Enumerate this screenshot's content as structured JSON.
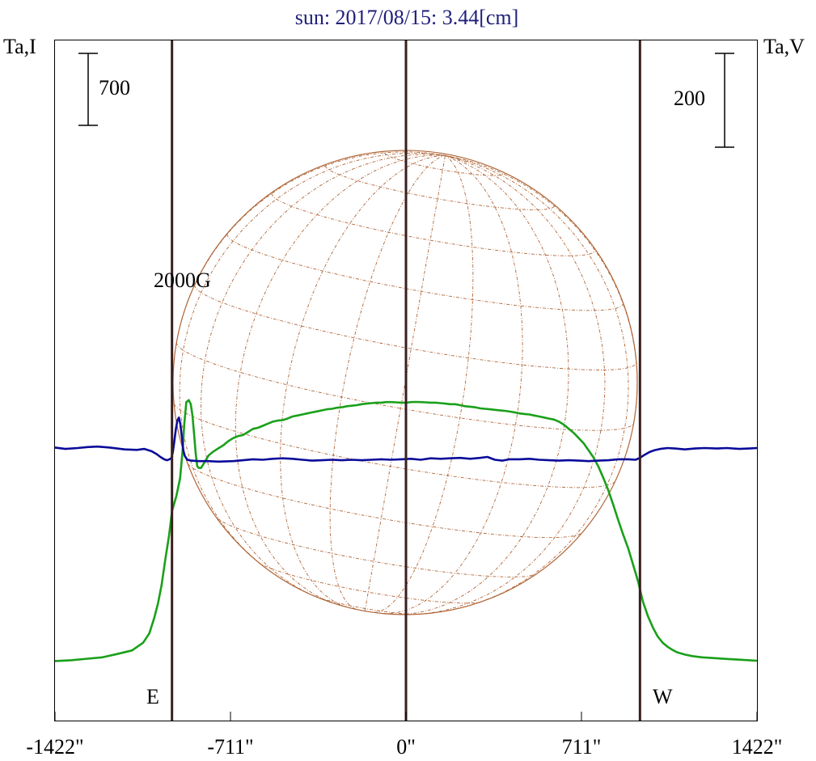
{
  "chart_data": {
    "type": "line",
    "title": "sun: 2017/08/15: 3.44[cm]",
    "ylabel_left": "Ta,I",
    "ylabel_right": "Ta,V",
    "xlim": [
      -1422,
      1422
    ],
    "x_ticks": [
      -1422,
      -711,
      0,
      711,
      1422
    ],
    "x_tick_labels": [
      "-1422\"",
      "-711\"",
      "0\"",
      "711\"",
      "1422\""
    ],
    "limb_lines": [
      -948,
      0,
      948
    ],
    "limb_labels": [
      "E",
      "W"
    ],
    "scale_bar_left": {
      "label": "700",
      "value": 700
    },
    "scale_bar_right": {
      "label": "200",
      "value": 200
    },
    "annotation": "2000G",
    "grid": false,
    "colors": {
      "intensity": "#1aa01a",
      "polarization": "#0a0a9a",
      "disk": "#b0673a",
      "limb_line": "#3a1f1f",
      "title": "#1f1f7a"
    },
    "series": [
      {
        "key": "intensity",
        "points": [
          [
            -1422,
            -58
          ],
          [
            -1357,
            -50
          ],
          [
            -1290,
            -35
          ],
          [
            -1230,
            -22
          ],
          [
            -1170,
            10
          ],
          [
            -1110,
            45
          ],
          [
            -1065,
            120
          ],
          [
            -1040,
            210
          ],
          [
            -1020,
            360
          ],
          [
            -1005,
            500
          ],
          [
            -990,
            680
          ],
          [
            -975,
            930
          ],
          [
            -960,
            1160
          ],
          [
            -948,
            1400
          ],
          [
            -930,
            1550
          ],
          [
            -915,
            1720
          ],
          [
            -905,
            1990
          ],
          [
            -898,
            2250
          ],
          [
            -890,
            2460
          ],
          [
            -880,
            2480
          ],
          [
            -872,
            2440
          ],
          [
            -865,
            2330
          ],
          [
            -858,
            2140
          ],
          [
            -852,
            1960
          ],
          [
            -846,
            1840
          ],
          [
            -840,
            1820
          ],
          [
            -830,
            1820
          ],
          [
            -815,
            1880
          ],
          [
            -800,
            1940
          ],
          [
            -780,
            1980
          ],
          [
            -760,
            2010
          ],
          [
            -740,
            2040
          ],
          [
            -720,
            2080
          ],
          [
            -700,
            2110
          ],
          [
            -680,
            2130
          ],
          [
            -660,
            2140
          ],
          [
            -640,
            2170
          ],
          [
            -620,
            2200
          ],
          [
            -600,
            2210
          ],
          [
            -580,
            2230
          ],
          [
            -560,
            2250
          ],
          [
            -540,
            2270
          ],
          [
            -520,
            2280
          ],
          [
            -500,
            2285
          ],
          [
            -480,
            2300
          ],
          [
            -460,
            2320
          ],
          [
            -440,
            2330
          ],
          [
            -420,
            2340
          ],
          [
            -400,
            2350
          ],
          [
            -380,
            2360
          ],
          [
            -360,
            2370
          ],
          [
            -340,
            2380
          ],
          [
            -320,
            2390
          ],
          [
            -300,
            2395
          ],
          [
            -280,
            2405
          ],
          [
            -260,
            2410
          ],
          [
            -240,
            2420
          ],
          [
            -220,
            2425
          ],
          [
            -200,
            2430
          ],
          [
            -180,
            2440
          ],
          [
            -160,
            2445
          ],
          [
            -140,
            2450
          ],
          [
            -120,
            2455
          ],
          [
            -100,
            2455
          ],
          [
            -80,
            2460
          ],
          [
            -60,
            2460
          ],
          [
            -40,
            2458
          ],
          [
            -20,
            2455
          ],
          [
            0,
            2455
          ],
          [
            20,
            2460
          ],
          [
            40,
            2462
          ],
          [
            60,
            2460
          ],
          [
            80,
            2458
          ],
          [
            100,
            2455
          ],
          [
            120,
            2455
          ],
          [
            140,
            2450
          ],
          [
            160,
            2445
          ],
          [
            180,
            2440
          ],
          [
            200,
            2440
          ],
          [
            220,
            2430
          ],
          [
            240,
            2420
          ],
          [
            260,
            2415
          ],
          [
            280,
            2410
          ],
          [
            300,
            2400
          ],
          [
            320,
            2395
          ],
          [
            340,
            2390
          ],
          [
            360,
            2385
          ],
          [
            380,
            2380
          ],
          [
            400,
            2375
          ],
          [
            420,
            2368
          ],
          [
            440,
            2360
          ],
          [
            460,
            2350
          ],
          [
            480,
            2345
          ],
          [
            500,
            2340
          ],
          [
            520,
            2330
          ],
          [
            540,
            2320
          ],
          [
            560,
            2310
          ],
          [
            580,
            2300
          ],
          [
            600,
            2290
          ],
          [
            620,
            2270
          ],
          [
            640,
            2240
          ],
          [
            660,
            2200
          ],
          [
            680,
            2160
          ],
          [
            700,
            2110
          ],
          [
            720,
            2060
          ],
          [
            740,
            1990
          ],
          [
            760,
            1920
          ],
          [
            780,
            1830
          ],
          [
            800,
            1720
          ],
          [
            820,
            1600
          ],
          [
            840,
            1460
          ],
          [
            860,
            1310
          ],
          [
            880,
            1170
          ],
          [
            900,
            1040
          ],
          [
            920,
            880
          ],
          [
            940,
            720
          ],
          [
            960,
            520
          ],
          [
            980,
            380
          ],
          [
            1000,
            270
          ],
          [
            1020,
            180
          ],
          [
            1040,
            120
          ],
          [
            1060,
            80
          ],
          [
            1080,
            50
          ],
          [
            1100,
            25
          ],
          [
            1130,
            5
          ],
          [
            1160,
            -10
          ],
          [
            1200,
            -22
          ],
          [
            1250,
            -30
          ],
          [
            1300,
            -38
          ],
          [
            1350,
            -45
          ],
          [
            1390,
            -50
          ],
          [
            1422,
            -55
          ]
        ]
      },
      {
        "key": "polarization",
        "points": [
          [
            -1422,
            20
          ],
          [
            -1380,
            17
          ],
          [
            -1330,
            19
          ],
          [
            -1290,
            21
          ],
          [
            -1250,
            22
          ],
          [
            -1200,
            20
          ],
          [
            -1140,
            16
          ],
          [
            -1090,
            15
          ],
          [
            -1060,
            17
          ],
          [
            -1030,
            12
          ],
          [
            -1010,
            6
          ],
          [
            -995,
            0
          ],
          [
            -980,
            -5
          ],
          [
            -968,
            -7
          ],
          [
            -958,
            -5
          ],
          [
            -950,
            -2
          ],
          [
            -944,
            12
          ],
          [
            -938,
            35
          ],
          [
            -932,
            60
          ],
          [
            -926,
            78
          ],
          [
            -920,
            84
          ],
          [
            -914,
            70
          ],
          [
            -908,
            42
          ],
          [
            -902,
            14
          ],
          [
            -896,
            2
          ],
          [
            -886,
            -6
          ],
          [
            -870,
            -8
          ],
          [
            -840,
            -9
          ],
          [
            -800,
            -9
          ],
          [
            -760,
            -10
          ],
          [
            -700,
            -9
          ],
          [
            -660,
            -7
          ],
          [
            -620,
            -5
          ],
          [
            -580,
            -6
          ],
          [
            -540,
            -4
          ],
          [
            -500,
            -3
          ],
          [
            -460,
            -4
          ],
          [
            -420,
            -6
          ],
          [
            -380,
            -8
          ],
          [
            -340,
            -7
          ],
          [
            -300,
            -6
          ],
          [
            -260,
            -7
          ],
          [
            -220,
            -6
          ],
          [
            -180,
            -7
          ],
          [
            -140,
            -6
          ],
          [
            -100,
            -5
          ],
          [
            -60,
            -6
          ],
          [
            -20,
            -5
          ],
          [
            20,
            -4
          ],
          [
            60,
            -6
          ],
          [
            100,
            -3
          ],
          [
            140,
            -4
          ],
          [
            180,
            -3
          ],
          [
            220,
            -2
          ],
          [
            260,
            -4
          ],
          [
            300,
            -2
          ],
          [
            330,
            0
          ],
          [
            360,
            -6
          ],
          [
            390,
            -8
          ],
          [
            420,
            -5
          ],
          [
            460,
            -5
          ],
          [
            500,
            -4
          ],
          [
            540,
            -6
          ],
          [
            580,
            -7
          ],
          [
            620,
            -8
          ],
          [
            660,
            -7
          ],
          [
            700,
            -8
          ],
          [
            740,
            -9
          ],
          [
            780,
            -8
          ],
          [
            820,
            -7
          ],
          [
            860,
            -5
          ],
          [
            900,
            -5
          ],
          [
            930,
            -6
          ],
          [
            948,
            -2
          ],
          [
            965,
            4
          ],
          [
            985,
            10
          ],
          [
            1005,
            14
          ],
          [
            1030,
            17
          ],
          [
            1060,
            19
          ],
          [
            1090,
            18
          ],
          [
            1130,
            16
          ],
          [
            1170,
            18
          ],
          [
            1210,
            19
          ],
          [
            1260,
            18
          ],
          [
            1300,
            19
          ],
          [
            1350,
            17
          ],
          [
            1390,
            18
          ],
          [
            1422,
            19
          ]
        ]
      }
    ]
  }
}
